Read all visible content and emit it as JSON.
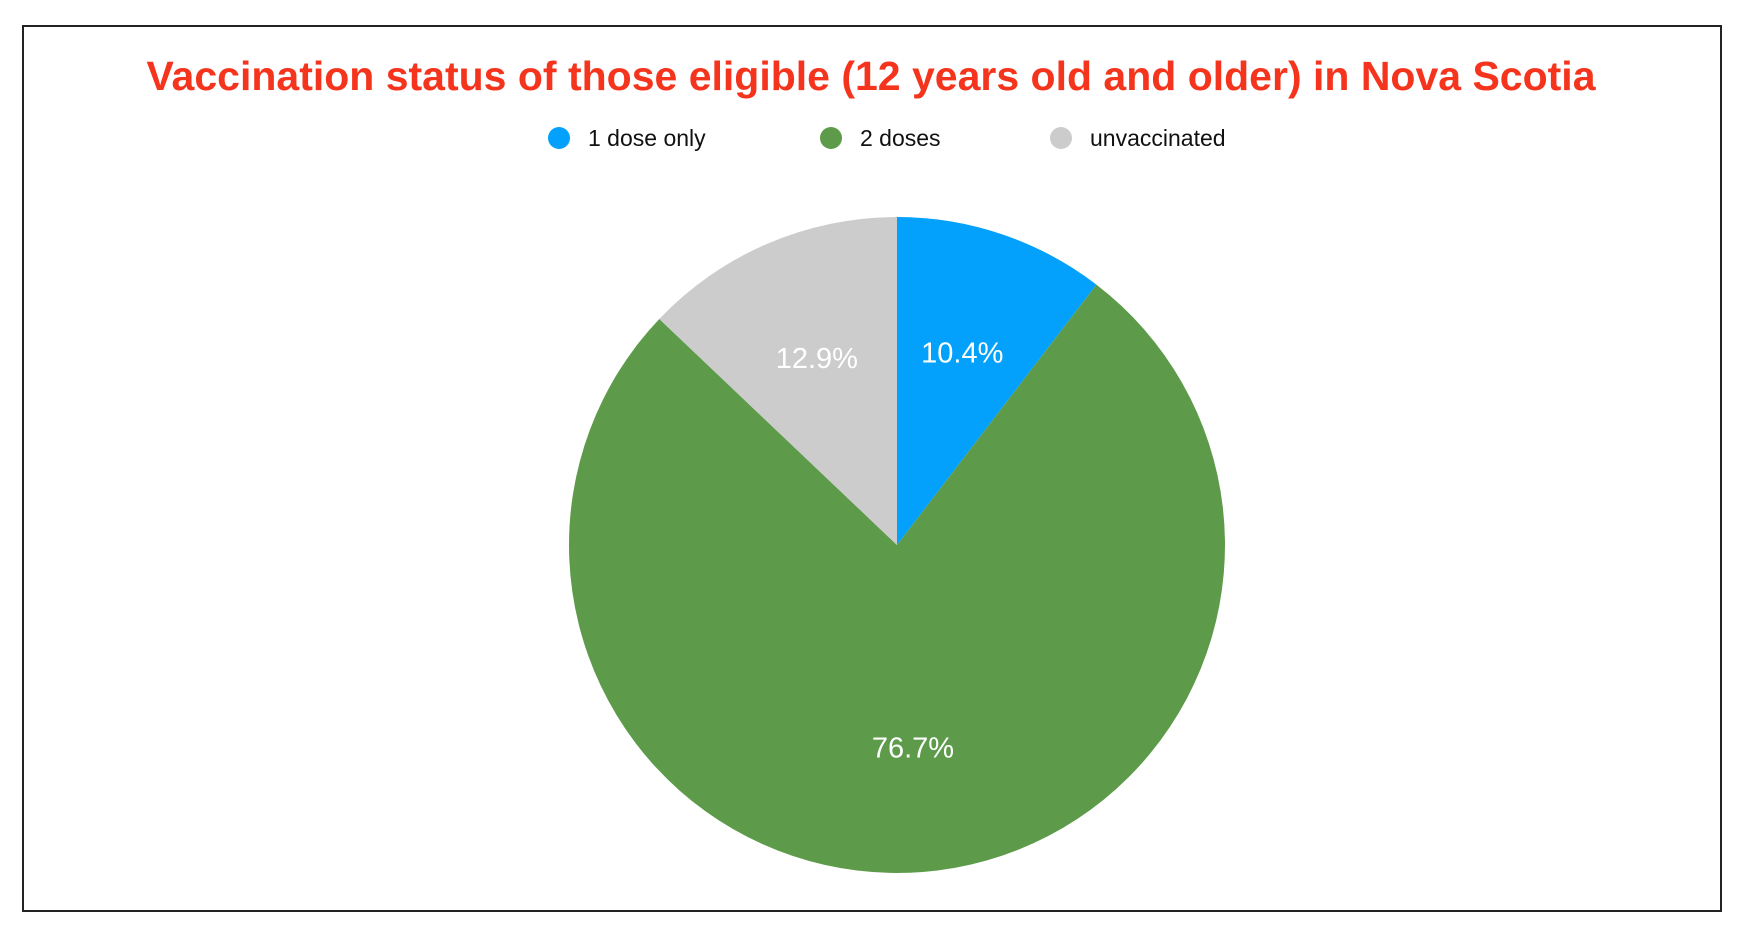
{
  "chart_data": {
    "type": "pie",
    "title": "Vaccination status of those eligible (12 years old and older) in Nova Scotia",
    "legend_position": "top-center",
    "slices": [
      {
        "label": "1 dose only",
        "value": 10.4,
        "display": "10.4%",
        "color": "#03a1fc"
      },
      {
        "label": "2 doses",
        "value": 76.7,
        "display": "76.7%",
        "color": "#5d9b4b"
      },
      {
        "label": "unvaccinated",
        "value": 12.9,
        "display": "12.9%",
        "color": "#cccccc"
      }
    ]
  },
  "colors": {
    "title": "#f5341d",
    "frame_border": "#222222"
  }
}
